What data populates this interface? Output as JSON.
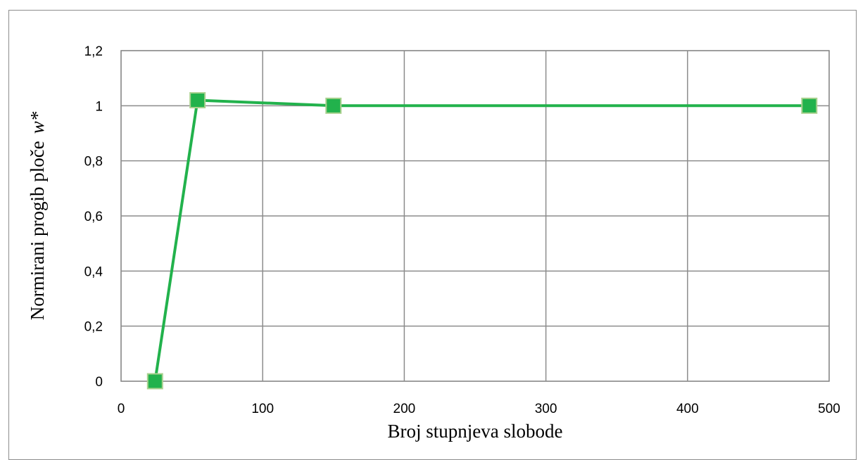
{
  "chart_data": {
    "type": "line",
    "title": "",
    "xlabel": "Broj stupnjeva slobode",
    "ylabel": "Normirani progib ploče",
    "ylabel_symbol": "w*",
    "xlim": [
      0,
      500
    ],
    "ylim": [
      0,
      1.2
    ],
    "x_ticks": [
      0,
      100,
      200,
      300,
      400,
      500
    ],
    "x_tick_labels": [
      "0",
      "100",
      "200",
      "300",
      "400",
      "500"
    ],
    "y_ticks": [
      0,
      0.2,
      0.4,
      0.6,
      0.8,
      1,
      1.2
    ],
    "y_tick_labels": [
      "0",
      "0,2",
      "0,4",
      "0,6",
      "0,8",
      "1",
      "1,2"
    ],
    "grid": true,
    "legend": "none",
    "series": [
      {
        "x": [
          24,
          54,
          150,
          486
        ],
        "y": [
          0,
          1.02,
          1.0,
          1.0
        ],
        "color": "#22b24c",
        "marker": "square",
        "marker_color": "#22b24c",
        "marker_edge": "#a9d18e"
      }
    ]
  }
}
